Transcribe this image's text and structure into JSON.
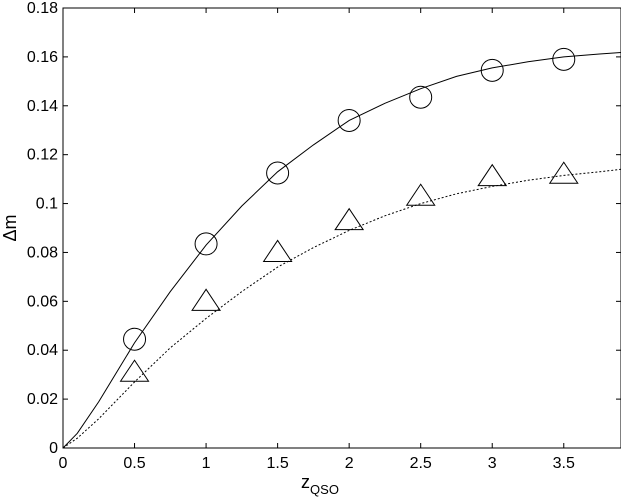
{
  "chart_data": {
    "type": "line",
    "xlabel": "z",
    "xlabel_subscript": "QSO",
    "ylabel": "Δm",
    "xlim": [
      0,
      3.9
    ],
    "ylim": [
      0,
      0.18
    ],
    "xticks": [
      "0",
      "0.5",
      "1",
      "1.5",
      "2",
      "2.5",
      "3",
      "3.5"
    ],
    "yticks": [
      "0",
      "0.02",
      "0.04",
      "0.06",
      "0.08",
      "0.1",
      "0.12",
      "0.14",
      "0.16",
      "0.18"
    ],
    "grid": false,
    "series": [
      {
        "style": "solid-line",
        "color": "#000000",
        "x": [
          0,
          0.1,
          0.25,
          0.5,
          0.75,
          1.0,
          1.25,
          1.5,
          1.75,
          2.0,
          2.25,
          2.5,
          2.75,
          3.0,
          3.25,
          3.5,
          3.75,
          3.9
        ],
        "y": [
          0,
          0.006,
          0.019,
          0.043,
          0.064,
          0.083,
          0.099,
          0.113,
          0.124,
          0.134,
          0.141,
          0.147,
          0.152,
          0.1555,
          0.158,
          0.16,
          0.1612,
          0.1618
        ]
      },
      {
        "style": "dotted-line",
        "color": "#000000",
        "x": [
          0,
          0.1,
          0.25,
          0.5,
          0.75,
          1.0,
          1.25,
          1.5,
          1.75,
          2.0,
          2.25,
          2.5,
          2.75,
          3.0,
          3.25,
          3.5,
          3.75,
          3.9
        ],
        "y": [
          0,
          0.004,
          0.012,
          0.027,
          0.041,
          0.053,
          0.064,
          0.074,
          0.082,
          0.089,
          0.095,
          0.1,
          0.104,
          0.107,
          0.1095,
          0.1115,
          0.113,
          0.114
        ]
      },
      {
        "style": "circle-markers",
        "color": "#000000",
        "x": [
          0.5,
          1.0,
          1.5,
          2.0,
          2.5,
          3.0,
          3.5
        ],
        "y": [
          0.0445,
          0.0835,
          0.1125,
          0.134,
          0.1435,
          0.1545,
          0.159
        ]
      },
      {
        "style": "triangle-markers",
        "color": "#000000",
        "x": [
          0.5,
          1.0,
          1.5,
          2.0,
          2.5,
          3.0,
          3.5
        ],
        "y": [
          0.031,
          0.06,
          0.08,
          0.093,
          0.103,
          0.111,
          0.112
        ]
      }
    ]
  }
}
